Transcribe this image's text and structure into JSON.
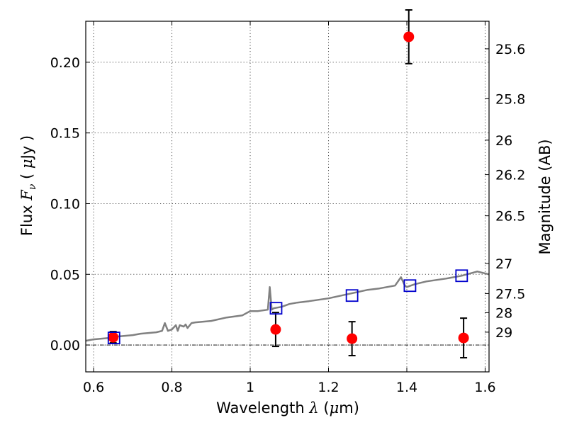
{
  "chart_data": {
    "type": "scatter",
    "xlabel_text": "Wavelength",
    "xlabel_symbol": "λ",
    "xlabel_unit_open": "(",
    "xlabel_unit_mu": "μ",
    "xlabel_unit_rest": "m)",
    "ylabel_text": "Flux",
    "ylabel_symbol": "F",
    "ylabel_sub": "ν",
    "ylabel_unit_open": "(",
    "ylabel_unit_mu": "μ",
    "ylabel_unit_rest": "Jy )",
    "y2label": "Magnitude (AB)",
    "xlim": [
      0.58,
      1.61
    ],
    "ylim": [
      -0.019,
      0.229
    ],
    "grid": true,
    "x_ticks": [
      {
        "value": 0.6,
        "label": "0.6"
      },
      {
        "value": 0.8,
        "label": "0.8"
      },
      {
        "value": 1.0,
        "label": "1"
      },
      {
        "value": 1.2,
        "label": "1.2"
      },
      {
        "value": 1.4,
        "label": "1.4"
      },
      {
        "value": 1.6,
        "label": "1.6"
      }
    ],
    "y_ticks": [
      {
        "value": 0.0,
        "label": "0.00"
      },
      {
        "value": 0.05,
        "label": "0.05"
      },
      {
        "value": 0.1,
        "label": "0.10"
      },
      {
        "value": 0.15,
        "label": "0.15"
      },
      {
        "value": 0.2,
        "label": "0.20"
      }
    ],
    "y2_ticks": [
      {
        "label": "25.6",
        "flux": 0.2095
      },
      {
        "label": "25.8",
        "flux": 0.1742
      },
      {
        "label": "26",
        "flux": 0.1449
      },
      {
        "label": "26.2",
        "flux": 0.1205
      },
      {
        "label": "26.5",
        "flux": 0.0914
      },
      {
        "label": "27",
        "flux": 0.0577
      },
      {
        "label": "27.5",
        "flux": 0.0364
      },
      {
        "label": "28",
        "flux": 0.0229
      },
      {
        "label": "29",
        "flux": 0.0091
      }
    ],
    "colors": {
      "observed": "#ff0000",
      "model_box": "#0000cc",
      "spectrum": "#808080",
      "errorbar": "#000000",
      "grid": "#555555"
    },
    "series": [
      {
        "kind": "observed_points",
        "x": [
          0.65,
          1.065,
          1.26,
          1.405,
          1.545
        ],
        "y": [
          0.0055,
          0.011,
          0.0045,
          0.218,
          0.005
        ],
        "yerr": [
          0.004,
          0.012,
          0.012,
          0.019,
          0.014
        ]
      },
      {
        "kind": "model_squares",
        "x": [
          0.652,
          1.066,
          1.26,
          1.408,
          1.54
        ],
        "y": [
          0.005,
          0.026,
          0.035,
          0.042,
          0.049
        ]
      },
      {
        "kind": "model_spectrum",
        "x": [
          0.58,
          0.6,
          0.62,
          0.64,
          0.66,
          0.68,
          0.7,
          0.72,
          0.74,
          0.76,
          0.775,
          0.782,
          0.79,
          0.8,
          0.81,
          0.815,
          0.82,
          0.83,
          0.835,
          0.84,
          0.85,
          0.86,
          0.9,
          0.94,
          0.98,
          1.0,
          1.02,
          1.045,
          1.05,
          1.055,
          1.06,
          1.08,
          1.1,
          1.12,
          1.15,
          1.2,
          1.25,
          1.3,
          1.33,
          1.37,
          1.385,
          1.395,
          1.4,
          1.42,
          1.45,
          1.5,
          1.54,
          1.58,
          1.61
        ],
        "y": [
          0.003,
          0.004,
          0.0045,
          0.005,
          0.006,
          0.0065,
          0.007,
          0.008,
          0.0085,
          0.009,
          0.01,
          0.0155,
          0.01,
          0.011,
          0.014,
          0.01,
          0.014,
          0.013,
          0.0145,
          0.012,
          0.0155,
          0.016,
          0.017,
          0.0195,
          0.021,
          0.024,
          0.024,
          0.025,
          0.041,
          0.025,
          0.026,
          0.027,
          0.029,
          0.03,
          0.031,
          0.033,
          0.036,
          0.039,
          0.04,
          0.042,
          0.048,
          0.042,
          0.041,
          0.043,
          0.045,
          0.047,
          0.049,
          0.052,
          0.05
        ]
      }
    ]
  }
}
